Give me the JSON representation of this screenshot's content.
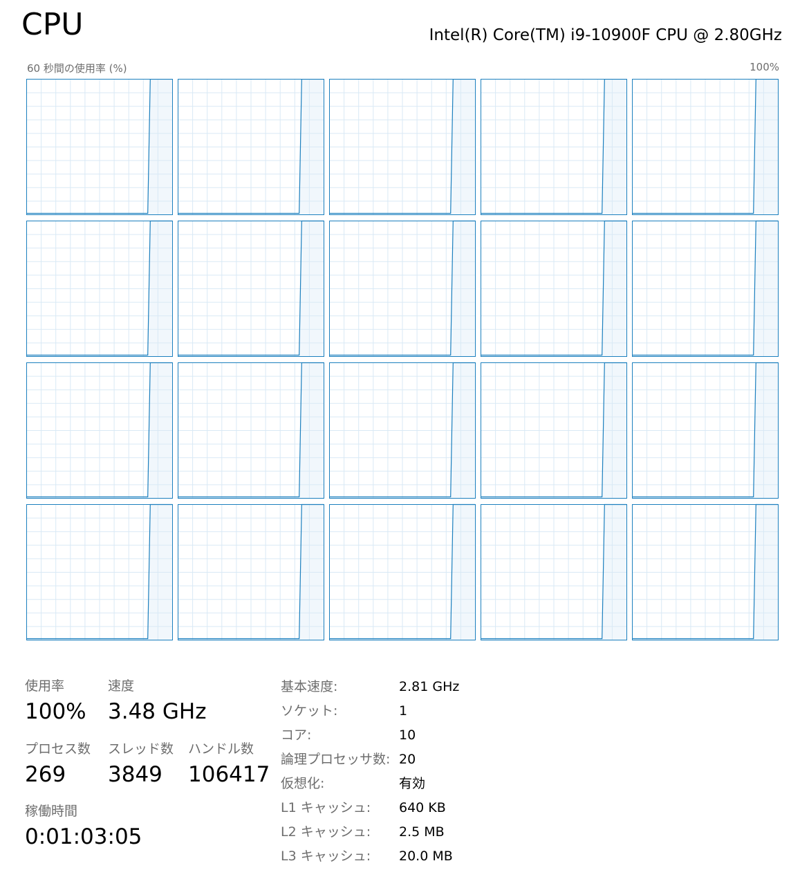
{
  "header": {
    "title": "CPU",
    "cpu_model": "Intel(R) Core(TM) i9-10900F CPU @ 2.80GHz"
  },
  "graph_labels": {
    "left": "60 秒間の使用率 (%)",
    "right": "100%"
  },
  "colors": {
    "line": "#1b7fbe",
    "border": "#1b7fbe",
    "grid": "#d9e9f5",
    "shade": "#f1f7fc"
  },
  "chart_data": {
    "type": "line",
    "y_range": [
      0,
      100
    ],
    "x_samples": 60,
    "series": [
      {
        "values": [
          1,
          1,
          1,
          1,
          1,
          1,
          1,
          1,
          1,
          1,
          1,
          1,
          1,
          1,
          1,
          1,
          1,
          1,
          1,
          1,
          1,
          1,
          1,
          1,
          1,
          1,
          1,
          1,
          1,
          1,
          1,
          1,
          1,
          1,
          1,
          1,
          1,
          1,
          1,
          1,
          1,
          1,
          1,
          1,
          1,
          1,
          1,
          1,
          1,
          1,
          100,
          100,
          100,
          100,
          100,
          100,
          100,
          100,
          100,
          100
        ]
      },
      {
        "values": [
          1,
          1,
          1,
          1,
          1,
          1,
          1,
          1,
          1,
          1,
          1,
          1,
          1,
          1,
          1,
          1,
          1,
          1,
          1,
          1,
          1,
          1,
          1,
          1,
          1,
          1,
          1,
          1,
          1,
          1,
          1,
          1,
          1,
          1,
          1,
          1,
          1,
          1,
          1,
          1,
          1,
          1,
          1,
          1,
          1,
          1,
          1,
          1,
          1,
          1,
          100,
          100,
          100,
          100,
          100,
          100,
          100,
          100,
          100,
          100
        ]
      }
    ]
  },
  "stats": {
    "usage": {
      "label": "使用率",
      "value": "100%"
    },
    "speed": {
      "label": "速度",
      "value": "3.48 GHz"
    },
    "processes": {
      "label": "プロセス数",
      "value": "269"
    },
    "threads": {
      "label": "スレッド数",
      "value": "3849"
    },
    "handles": {
      "label": "ハンドル数",
      "value": "106417"
    },
    "uptime": {
      "label": "稼働時間",
      "value": "0:01:03:05"
    }
  },
  "specs": [
    {
      "key": "基本速度:",
      "value": "2.81 GHz"
    },
    {
      "key": "ソケット:",
      "value": "1"
    },
    {
      "key": "コア:",
      "value": "10"
    },
    {
      "key": "論理プロセッサ数:",
      "value": "20"
    },
    {
      "key": "仮想化:",
      "value": "有効"
    },
    {
      "key": "L1 キャッシュ:",
      "value": "640 KB"
    },
    {
      "key": "L2 キャッシュ:",
      "value": "2.5 MB"
    },
    {
      "key": "L3 キャッシュ:",
      "value": "20.0 MB"
    }
  ]
}
